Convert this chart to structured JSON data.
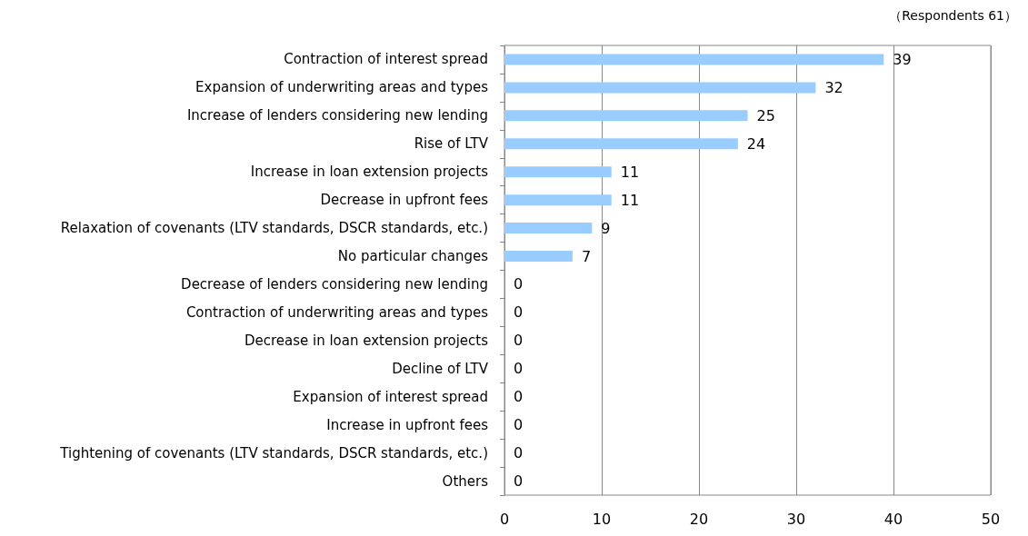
{
  "chart_data": {
    "type": "bar",
    "orientation": "horizontal",
    "categories": [
      "Contraction of interest spread",
      "Expansion of underwriting areas and types",
      "Increase of lenders considering new lending",
      "Rise of LTV",
      "Increase in loan extension projects",
      "Decrease in upfront fees",
      "Relaxation of covenants (LTV standards, DSCR standards, etc.)",
      "No particular changes",
      "Decrease of lenders considering new lending",
      "Contraction of underwriting areas and types",
      "Decrease in loan extension projects",
      "Decline of LTV",
      "Expansion of interest spread",
      "Increase in upfront fees",
      "Tightening of covenants (LTV standards, DSCR standards, etc.)",
      "Others"
    ],
    "values": [
      39,
      32,
      25,
      24,
      11,
      11,
      9,
      7,
      0,
      0,
      0,
      0,
      0,
      0,
      0,
      0
    ],
    "color": "#99ccff",
    "xlim": [
      0,
      50
    ],
    "xticks": [
      0,
      10,
      20,
      30,
      40,
      50
    ],
    "grid": "x",
    "data_labels": true,
    "annotations": [
      "（Respondents 61）"
    ]
  }
}
